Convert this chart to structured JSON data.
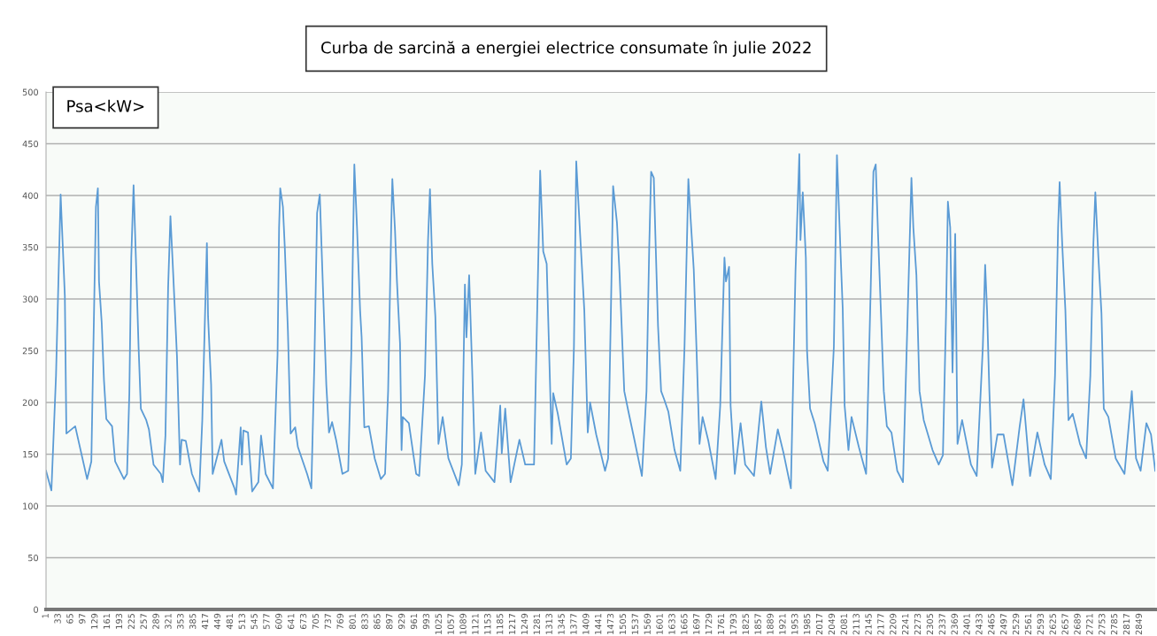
{
  "chart_data": {
    "type": "line",
    "title": "Curba de sarcină a energiei electrice consumate în julie 2022",
    "ylabel": "Psa<kW>",
    "xlim": [
      1,
      2890
    ],
    "xticks": [
      1,
      33,
      65,
      97,
      129,
      161,
      193,
      225,
      257,
      289,
      321,
      353,
      385,
      417,
      449,
      481,
      513,
      545,
      577,
      609,
      641,
      673,
      705,
      737,
      769,
      801,
      833,
      865,
      897,
      929,
      961,
      993,
      1025,
      1057,
      1089,
      1121,
      1153,
      1185,
      1217,
      1249,
      1281,
      1313,
      1345,
      1377,
      1409,
      1441,
      1473,
      1505,
      1537,
      1569,
      1601,
      1633,
      1665,
      1697,
      1729,
      1761,
      1793,
      1825,
      1857,
      1889,
      1921,
      1953,
      1985,
      2017,
      2049,
      2081,
      2113,
      2145,
      2177,
      2209,
      2241,
      2273,
      2305,
      2337,
      2369,
      2401,
      2433,
      2465,
      2497,
      2529,
      2561,
      2593,
      2625,
      2657,
      2689,
      2721,
      2753,
      2785,
      2817,
      2849
    ],
    "ylim": [
      0,
      500
    ],
    "yticks": [
      0,
      50,
      100,
      150,
      200,
      250,
      300,
      350,
      400,
      450,
      500
    ],
    "grid": "y",
    "legend": false,
    "marker": "none",
    "line_style": "solid",
    "series": [
      {
        "color": "#5b9bd5",
        "x": [
          1,
          15,
          27,
          39,
          50,
          54,
          77,
          108,
          119,
          123,
          131,
          136,
          139,
          146,
          152,
          158,
          173,
          181,
          204,
          212,
          218,
          223,
          229,
          235,
          242,
          248,
          262,
          269,
          281,
          300,
          305,
          312,
          319,
          325,
          331,
          342,
          350,
          354,
          365,
          381,
          400,
          408,
          415,
          420,
          423,
          431,
          435,
          458,
          465,
          492,
          496,
          508,
          511,
          515,
          527,
          538,
          554,
          561,
          573,
          592,
          604,
          608,
          611,
          618,
          623,
          631,
          638,
          650,
          657,
          681,
          692,
          700,
          707,
          714,
          719,
          731,
          738,
          746,
          757,
          773,
          788,
          796,
          800,
          804,
          811,
          819,
          823,
          830,
          842,
          857,
          873,
          884,
          892,
          900,
          903,
          910,
          915,
          923,
          927,
          930,
          946,
          965,
          973,
          988,
          996,
          1001,
          1007,
          1015,
          1023,
          1034,
          1049,
          1076,
          1084,
          1092,
          1096,
          1103,
          1111,
          1119,
          1134,
          1146,
          1169,
          1184,
          1188,
          1197,
          1211,
          1234,
          1249,
          1272,
          1280,
          1288,
          1296,
          1305,
          1311,
          1318,
          1322,
          1334,
          1357,
          1368,
          1376,
          1382,
          1392,
          1403,
          1412,
          1418,
          1434,
          1457,
          1465,
          1472,
          1478,
          1488,
          1495,
          1507,
          1518,
          1534,
          1553,
          1565,
          1572,
          1577,
          1584,
          1588,
          1595,
          1603,
          1611,
          1622,
          1638,
          1653,
          1664,
          1674,
          1680,
          1688,
          1695,
          1703,
          1711,
          1726,
          1745,
          1757,
          1768,
          1772,
          1780,
          1784,
          1795,
          1810,
          1822,
          1845,
          1860,
          1864,
          1876,
          1887,
          1907,
          1922,
          1941,
          1953,
          1963,
          1966,
          1972,
          1980,
          1983,
          1991,
          2003,
          2026,
          2037,
          2053,
          2061,
          2068,
          2072,
          2076,
          2081,
          2091,
          2099,
          2118,
          2137,
          2149,
          2156,
          2162,
          2168,
          2176,
          2183,
          2191,
          2203,
          2218,
          2233,
          2245,
          2255,
          2260,
          2268,
          2276,
          2287,
          2310,
          2326,
          2337,
          2345,
          2350,
          2356,
          2362,
          2369,
          2375,
          2387,
          2410,
          2425,
          2441,
          2447,
          2452,
          2458,
          2465,
          2479,
          2495,
          2518,
          2537,
          2547,
          2564,
          2583,
          2602,
          2618,
          2629,
          2637,
          2641,
          2648,
          2656,
          2664,
          2675,
          2694,
          2710,
          2721,
          2729,
          2734,
          2742,
          2750,
          2756,
          2768,
          2787,
          2810,
          2829,
          2840,
          2852,
          2867,
          2879,
          2890
        ],
        "values": [
          134,
          115,
          226,
          401,
          303,
          170,
          177,
          126,
          143,
          226,
          389,
          407,
          317,
          277,
          221,
          184,
          177,
          143,
          126,
          131,
          209,
          340,
          410,
          340,
          254,
          194,
          183,
          174,
          140,
          131,
          123,
          168,
          311,
          380,
          334,
          245,
          140,
          164,
          163,
          131,
          114,
          183,
          283,
          354,
          283,
          217,
          131,
          164,
          143,
          117,
          111,
          176,
          140,
          173,
          171,
          114,
          123,
          168,
          131,
          117,
          246,
          369,
          407,
          389,
          349,
          269,
          170,
          176,
          157,
          131,
          117,
          240,
          383,
          401,
          346,
          217,
          171,
          181,
          163,
          131,
          134,
          246,
          340,
          430,
          369,
          289,
          263,
          176,
          177,
          146,
          126,
          131,
          211,
          369,
          416,
          366,
          317,
          257,
          154,
          186,
          180,
          131,
          129,
          226,
          357,
          406,
          334,
          283,
          160,
          186,
          146,
          120,
          140,
          314,
          263,
          323,
          231,
          131,
          171,
          134,
          123,
          197,
          151,
          194,
          123,
          164,
          140,
          140,
          283,
          424,
          346,
          334,
          254,
          160,
          209,
          189,
          140,
          146,
          254,
          433,
          363,
          289,
          171,
          200,
          169,
          134,
          146,
          283,
          409,
          374,
          323,
          211,
          191,
          163,
          129,
          211,
          349,
          423,
          417,
          363,
          274,
          211,
          203,
          191,
          154,
          134,
          254,
          416,
          377,
          329,
          254,
          160,
          186,
          163,
          126,
          197,
          340,
          317,
          331,
          197,
          131,
          180,
          140,
          129,
          186,
          201,
          157,
          131,
          174,
          151,
          117,
          326,
          440,
          357,
          403,
          340,
          251,
          194,
          180,
          143,
          134,
          254,
          439,
          369,
          329,
          291,
          197,
          154,
          186,
          157,
          131,
          311,
          423,
          430,
          363,
          283,
          211,
          177,
          171,
          134,
          123,
          283,
          417,
          369,
          323,
          211,
          183,
          154,
          140,
          149,
          283,
          394,
          369,
          229,
          363,
          160,
          183,
          140,
          129,
          254,
          333,
          289,
          211,
          137,
          169,
          169,
          120,
          177,
          203,
          129,
          171,
          140,
          126,
          226,
          369,
          413,
          351,
          289,
          183,
          189,
          160,
          146,
          226,
          354,
          403,
          340,
          286,
          194,
          186,
          146,
          131,
          211,
          146,
          134,
          180,
          169,
          134
        ]
      }
    ]
  }
}
